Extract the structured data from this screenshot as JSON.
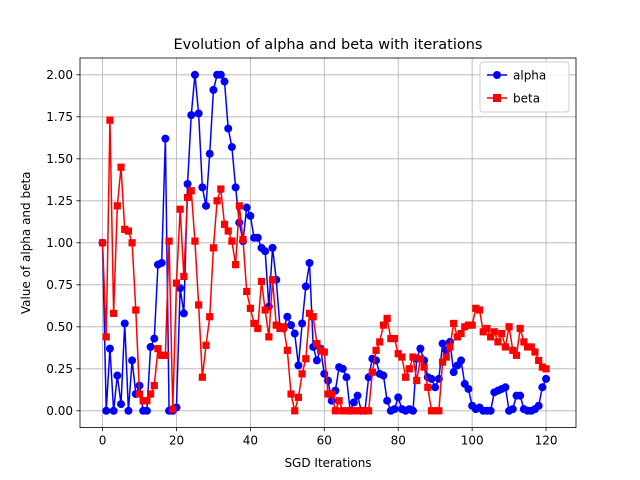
{
  "chart_data": {
    "type": "line",
    "title": "Evolution of alpha and beta with iterations",
    "xlabel": "SGD Iterations",
    "ylabel": "Value of alpha and beta",
    "xlim": [
      -6.1,
      128.1
    ],
    "ylim": [
      -0.1,
      2.1
    ],
    "grid": true,
    "legend_position": "top-right",
    "x_ticks": [
      0,
      20,
      40,
      60,
      80,
      100,
      120
    ],
    "x_tick_labels": [
      "0",
      "20",
      "40",
      "60",
      "80",
      "100",
      "120"
    ],
    "y_ticks": [
      0,
      0.25,
      0.5,
      0.75,
      1.0,
      1.25,
      1.5,
      1.75,
      2.0
    ],
    "y_tick_labels": [
      "0.00",
      "0.25",
      "0.50",
      "0.75",
      "1.00",
      "1.25",
      "1.50",
      "1.75",
      "2.00"
    ],
    "series": [
      {
        "name": "alpha",
        "color": "#0000ff",
        "marker": "circle",
        "values": [
          1.0,
          0.0,
          0.37,
          0.0,
          0.21,
          0.04,
          0.52,
          0.0,
          0.3,
          0.1,
          0.15,
          0.0,
          0.0,
          0.38,
          0.43,
          0.87,
          0.88,
          1.62,
          0.0,
          0.0,
          0.02,
          0.73,
          0.58,
          1.35,
          1.76,
          2.0,
          1.77,
          1.33,
          1.22,
          1.53,
          1.91,
          2.0,
          2.0,
          1.96,
          1.68,
          1.57,
          1.33,
          1.12,
          1.01,
          1.21,
          1.16,
          1.03,
          1.03,
          0.97,
          0.95,
          0.62,
          0.97,
          0.78,
          0.5,
          0.49,
          0.56,
          0.51,
          0.46,
          0.27,
          0.52,
          0.74,
          0.88,
          0.38,
          0.3,
          0.37,
          0.22,
          0.18,
          0.06,
          0.12,
          0.26,
          0.25,
          0.2,
          0.0,
          0.05,
          0.09,
          0.0,
          0.0,
          0.2,
          0.31,
          0.3,
          0.22,
          0.21,
          0.06,
          0.0,
          0.01,
          0.08,
          0.01,
          0.0,
          0.01,
          0.0,
          0.31,
          0.37,
          0.3,
          0.2,
          0.19,
          0.14,
          0.19,
          0.4,
          0.36,
          0.41,
          0.23,
          0.27,
          0.3,
          0.16,
          0.13,
          0.03,
          0.01,
          0.02,
          0.0,
          0.0,
          0.0,
          0.11,
          0.12,
          0.13,
          0.14,
          0.0,
          0.01,
          0.09,
          0.09,
          0.01,
          0.0,
          0.0,
          0.01,
          0.03,
          0.14,
          0.19
        ]
      },
      {
        "name": "beta",
        "color": "#ff0000",
        "marker": "square",
        "values": [
          1.0,
          0.44,
          1.73,
          0.58,
          1.22,
          1.45,
          1.08,
          1.07,
          1.0,
          0.6,
          0.1,
          0.06,
          0.06,
          0.1,
          0.15,
          0.37,
          0.33,
          0.33,
          1.01,
          0.01,
          0.76,
          1.2,
          0.8,
          1.27,
          1.31,
          1.01,
          0.63,
          0.2,
          0.39,
          0.56,
          0.97,
          1.25,
          1.32,
          1.11,
          1.07,
          1.01,
          0.87,
          1.22,
          1.02,
          0.71,
          0.61,
          0.52,
          0.49,
          0.77,
          0.6,
          0.44,
          0.78,
          0.51,
          0.49,
          0.5,
          0.36,
          0.1,
          0.0,
          0.08,
          0.22,
          0.31,
          0.58,
          0.56,
          0.4,
          0.36,
          0.35,
          0.1,
          0.1,
          0.0,
          0.06,
          0.0,
          0.0,
          0.0,
          0.0,
          0.0,
          0.0,
          0.0,
          0.0,
          0.23,
          0.36,
          0.41,
          0.51,
          0.55,
          0.43,
          0.43,
          0.34,
          0.32,
          0.2,
          0.25,
          0.32,
          0.18,
          0.31,
          0.26,
          0.14,
          0.0,
          0.0,
          0.0,
          0.29,
          0.32,
          0.38,
          0.52,
          0.44,
          0.46,
          0.5,
          0.51,
          0.51,
          0.61,
          0.6,
          0.47,
          0.49,
          0.44,
          0.47,
          0.41,
          0.46,
          0.38,
          0.5,
          0.36,
          0.33,
          0.49,
          0.41,
          0.38,
          0.38,
          0.35,
          0.3,
          0.26,
          0.25
        ]
      }
    ]
  }
}
